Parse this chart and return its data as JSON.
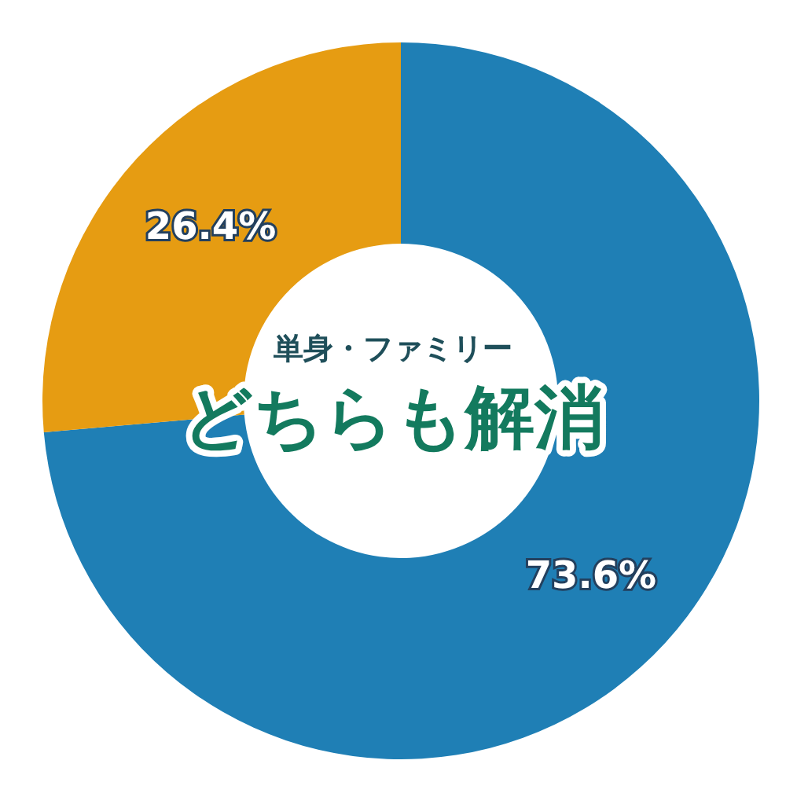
{
  "chart_data": {
    "type": "donut",
    "subtitle": "単身・ファミリー",
    "title": "どちらも解消",
    "categories": [
      null,
      null
    ],
    "values": [
      73.6,
      26.4
    ],
    "colors": [
      "#1f7fb5",
      "#e69c12"
    ],
    "value_labels": [
      "73.6%",
      "26.4%"
    ],
    "legend": false
  }
}
